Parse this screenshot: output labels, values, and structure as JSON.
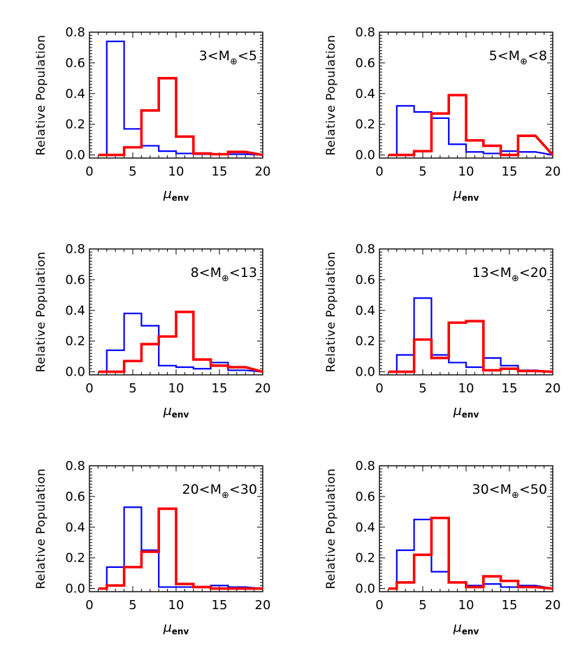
{
  "chart_data": [
    {
      "type": "histogram",
      "annotation": {
        "pre": "3<M",
        "sub": "⊕",
        "post": "<5"
      },
      "ylabel": "Relative Population",
      "xlabel": {
        "main": "μ",
        "sub": "env"
      },
      "xlim": [
        0,
        20
      ],
      "ylim": [
        0,
        0.8
      ],
      "xticks": [
        "0",
        "5",
        "10",
        "15",
        "20"
      ],
      "yticks": [
        "0.0",
        "0.2",
        "0.4",
        "0.6",
        "0.8"
      ],
      "bin_edges": [
        2,
        4,
        6,
        8,
        10,
        12,
        14,
        16,
        18
      ],
      "series": [
        {
          "color": "#0000ff",
          "values": [
            0.74,
            0.17,
            0.06,
            0.025,
            0.01,
            0.005,
            0.005,
            0.005
          ]
        },
        {
          "color": "#ff0000",
          "values": [
            0.0,
            0.05,
            0.29,
            0.5,
            0.12,
            0.01,
            0.005,
            0.02
          ]
        }
      ]
    },
    {
      "type": "histogram",
      "annotation": {
        "pre": "5<M",
        "sub": "⊕",
        "post": "<8"
      },
      "ylabel": "Relative Population",
      "xlabel": {
        "main": "μ",
        "sub": "env"
      },
      "xlim": [
        0,
        20
      ],
      "ylim": [
        0,
        0.8
      ],
      "xticks": [
        "0",
        "5",
        "10",
        "15",
        "20"
      ],
      "yticks": [
        "0.0",
        "0.2",
        "0.4",
        "0.6",
        "0.8"
      ],
      "bin_edges": [
        2,
        4,
        6,
        8,
        10,
        12,
        14,
        16,
        18
      ],
      "series": [
        {
          "color": "#0000ff",
          "values": [
            0.32,
            0.28,
            0.24,
            0.07,
            0.02,
            0.01,
            0.025,
            0.02
          ]
        },
        {
          "color": "#ff0000",
          "values": [
            0.0,
            0.025,
            0.27,
            0.39,
            0.095,
            0.06,
            0.0,
            0.125
          ]
        }
      ]
    },
    {
      "type": "histogram",
      "annotation": {
        "pre": "8<M",
        "sub": "⊕",
        "post": "<13"
      },
      "ylabel": "Relative Population",
      "xlabel": {
        "main": "μ",
        "sub": "env"
      },
      "xlim": [
        0,
        20
      ],
      "ylim": [
        0,
        0.8
      ],
      "xticks": [
        "0",
        "5",
        "10",
        "15",
        "20"
      ],
      "yticks": [
        "0.0",
        "0.2",
        "0.4",
        "0.6",
        "0.8"
      ],
      "bin_edges": [
        2,
        4,
        6,
        8,
        10,
        12,
        14,
        16,
        18
      ],
      "series": [
        {
          "color": "#0000ff",
          "values": [
            0.14,
            0.38,
            0.3,
            0.04,
            0.03,
            0.02,
            0.06,
            0.01
          ]
        },
        {
          "color": "#ff0000",
          "values": [
            0.0,
            0.07,
            0.18,
            0.23,
            0.39,
            0.08,
            0.04,
            0.03
          ]
        }
      ]
    },
    {
      "type": "histogram",
      "annotation": {
        "pre": "13<M",
        "sub": "⊕",
        "post": "<20"
      },
      "ylabel": "Relative Population",
      "xlabel": {
        "main": "μ",
        "sub": "env"
      },
      "xlim": [
        0,
        20
      ],
      "ylim": [
        0,
        0.8
      ],
      "xticks": [
        "0",
        "5",
        "10",
        "15",
        "20"
      ],
      "yticks": [
        "0.0",
        "0.2",
        "0.4",
        "0.6",
        "0.8"
      ],
      "bin_edges": [
        2,
        4,
        6,
        8,
        10,
        12,
        14,
        16,
        18
      ],
      "series": [
        {
          "color": "#0000ff",
          "values": [
            0.11,
            0.48,
            0.11,
            0.06,
            0.03,
            0.09,
            0.04,
            0.01
          ]
        },
        {
          "color": "#ff0000",
          "values": [
            0.0,
            0.21,
            0.09,
            0.32,
            0.33,
            0.01,
            0.02,
            0.005
          ]
        }
      ]
    },
    {
      "type": "histogram",
      "annotation": {
        "pre": "20<M",
        "sub": "⊕",
        "post": "<30"
      },
      "ylabel": "Relative Population",
      "xlabel": {
        "main": "μ",
        "sub": "env"
      },
      "xlim": [
        0,
        20
      ],
      "ylim": [
        0,
        0.8
      ],
      "xticks": [
        "0",
        "5",
        "10",
        "15",
        "20"
      ],
      "yticks": [
        "0.0",
        "0.2",
        "0.4",
        "0.6",
        "0.8"
      ],
      "bin_edges": [
        2,
        4,
        6,
        8,
        10,
        12,
        14,
        16,
        18
      ],
      "series": [
        {
          "color": "#0000ff",
          "values": [
            0.14,
            0.53,
            0.25,
            0.01,
            0.01,
            0.01,
            0.02,
            0.01
          ]
        },
        {
          "color": "#ff0000",
          "values": [
            0.02,
            0.14,
            0.24,
            0.52,
            0.03,
            0.01,
            0.0,
            0.0
          ]
        }
      ]
    },
    {
      "type": "histogram",
      "annotation": {
        "pre": "30<M",
        "sub": "⊕",
        "post": "<50"
      },
      "ylabel": "Relative Population",
      "xlabel": {
        "main": "μ",
        "sub": "env"
      },
      "xlim": [
        0,
        20
      ],
      "ylim": [
        0,
        0.8
      ],
      "xticks": [
        "0",
        "5",
        "10",
        "15",
        "20"
      ],
      "yticks": [
        "0.0",
        "0.2",
        "0.4",
        "0.6",
        "0.8"
      ],
      "bin_edges": [
        2,
        4,
        6,
        8,
        10,
        12,
        14,
        16,
        18
      ],
      "series": [
        {
          "color": "#0000ff",
          "values": [
            0.25,
            0.45,
            0.11,
            0.04,
            0.02,
            0.03,
            0.01,
            0.02
          ]
        },
        {
          "color": "#ff0000",
          "values": [
            0.04,
            0.22,
            0.46,
            0.04,
            0.01,
            0.08,
            0.05,
            0.01
          ]
        }
      ]
    }
  ]
}
